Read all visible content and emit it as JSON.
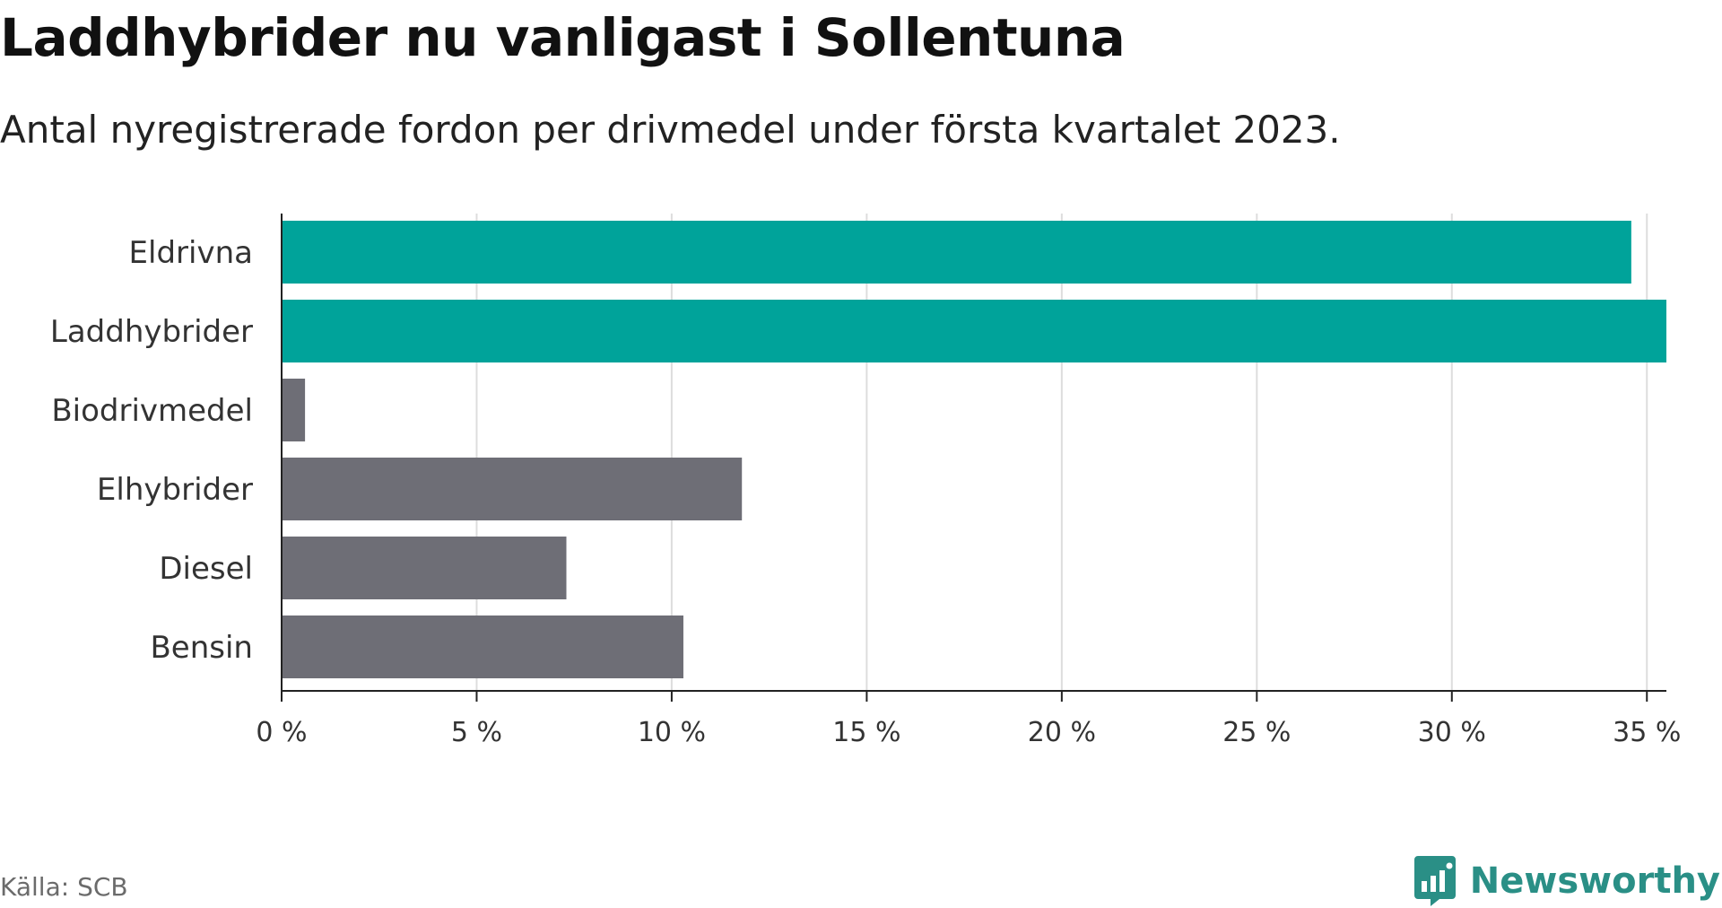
{
  "header": {
    "title": "Laddhybrider nu vanligast i Sollentuna",
    "subtitle": "Antal nyregistrerade fordon per drivmedel under första kvartalet 2023."
  },
  "footer": {
    "source": "Källa: SCB",
    "brand": "Newsworthy"
  },
  "colors": {
    "highlight": "#00A39A",
    "default": "#6E6E76",
    "grid": "#dddddd",
    "axis": "#222222",
    "brand": "#2a8f86"
  },
  "chart_data": {
    "type": "bar",
    "orientation": "horizontal",
    "title": "Laddhybrider nu vanligast i Sollentuna",
    "subtitle": "Antal nyregistrerade fordon per drivmedel under första kvartalet 2023.",
    "xlabel": "",
    "ylabel": "",
    "unit": "%",
    "xlim": [
      0,
      35.5
    ],
    "ticks": [
      0,
      5,
      10,
      15,
      20,
      25,
      30,
      35
    ],
    "tick_labels": [
      "0 %",
      "5 %",
      "10 %",
      "15 %",
      "20 %",
      "25 %",
      "30 %",
      "35 %"
    ],
    "grid": true,
    "categories": [
      "Eldrivna",
      "Laddhybrider",
      "Biodrivmedel",
      "Elhybrider",
      "Diesel",
      "Bensin"
    ],
    "values": [
      34.6,
      35.5,
      0.6,
      11.8,
      7.3,
      10.3
    ],
    "highlighted": [
      true,
      true,
      false,
      false,
      false,
      false
    ]
  }
}
